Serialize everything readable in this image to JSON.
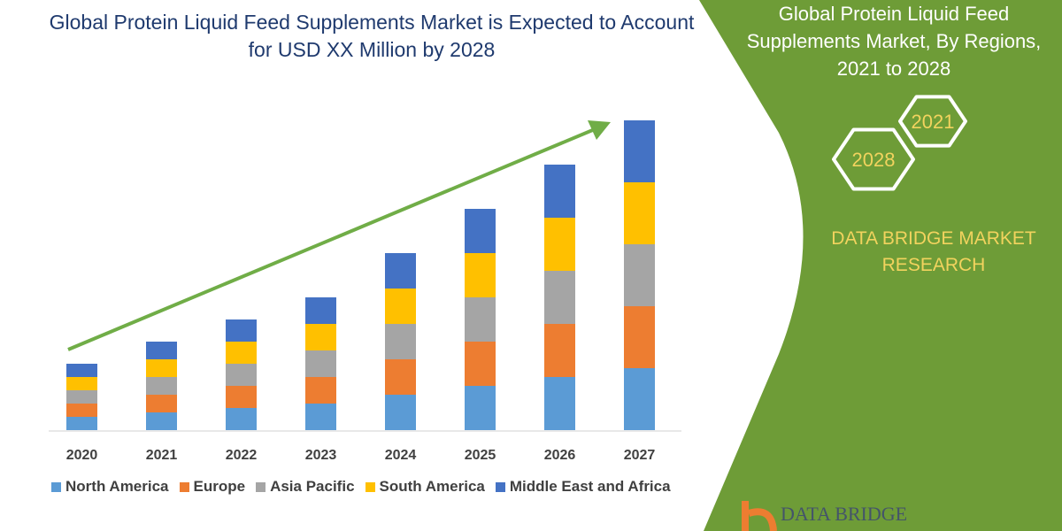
{
  "title": "Global Protein Liquid Feed Supplements Market is Expected to Account for  USD XX Million by 2028",
  "panel": {
    "title": "Global Protein Liquid Feed Supplements Market, By Regions, 2021 to 2028",
    "hex_left": "2028",
    "hex_right": "2021",
    "brand": "DATA BRIDGE MARKET RESEARCH",
    "logo_text": "DATA BRIDGE",
    "panel_color": "#6e9c37",
    "hex_text_color": "#f2d35e"
  },
  "chart_data": {
    "type": "bar",
    "stacked": true,
    "categories": [
      "2020",
      "2021",
      "2022",
      "2023",
      "2024",
      "2025",
      "2026",
      "2027"
    ],
    "series": [
      {
        "name": "North America",
        "color": "#5b9bd5",
        "values": [
          15,
          20,
          25,
          30,
          40,
          50,
          60,
          70
        ]
      },
      {
        "name": "Europe",
        "color": "#ed7d31",
        "values": [
          15,
          20,
          25,
          30,
          40,
          50,
          60,
          70
        ]
      },
      {
        "name": "Asia Pacific",
        "color": "#a5a5a5",
        "values": [
          15,
          20,
          25,
          30,
          40,
          50,
          60,
          70
        ]
      },
      {
        "name": "South America",
        "color": "#ffc000",
        "values": [
          15,
          20,
          25,
          30,
          40,
          50,
          60,
          70
        ]
      },
      {
        "name": "Middle East and Africa",
        "color": "#4472c4",
        "values": [
          15,
          20,
          25,
          30,
          40,
          50,
          60,
          70
        ]
      }
    ],
    "ylim": [
      0,
      350
    ],
    "y_axis_shown": false,
    "grid": false,
    "legend_position": "bottom",
    "trend_arrow_color": "#70ad47"
  }
}
